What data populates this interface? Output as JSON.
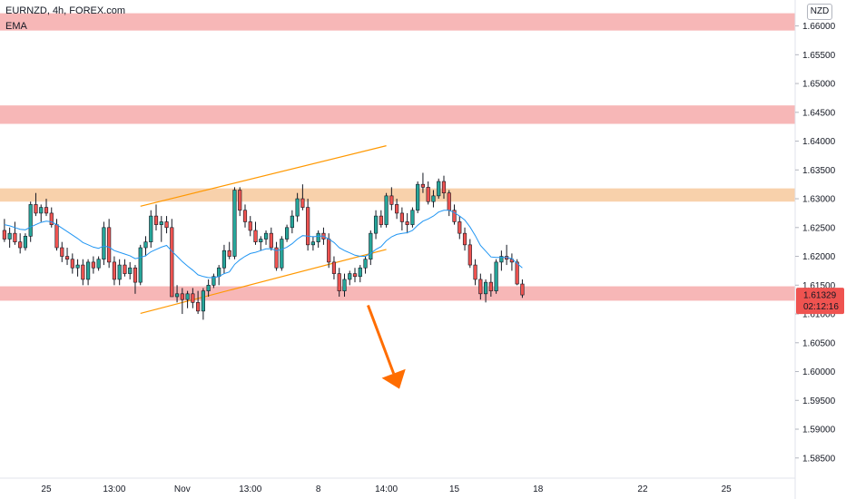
{
  "header": {
    "symbol_line": "EURNZD, 4h, FOREX.com",
    "indicator": "EMA",
    "currency": "NZD"
  },
  "price_label": {
    "price": "1.61329",
    "countdown": "02:12:16"
  },
  "colors": {
    "up": "#26a69a",
    "down": "#ef5350",
    "ema": "#2196f3",
    "channel": "#ff9800",
    "resistance_zone": "#f7b3b3",
    "orange_zone": "#f8cfa6",
    "arrow": "#ff6d00",
    "price_tag": "#ef5350"
  },
  "zones": [
    {
      "type": "red",
      "low": 1.6592,
      "high": 1.6622
    },
    {
      "type": "red",
      "low": 1.643,
      "high": 1.6462
    },
    {
      "type": "orange",
      "low": 1.6295,
      "high": 1.6318
    },
    {
      "type": "red",
      "low": 1.6123,
      "high": 1.6148
    }
  ],
  "chart_data": {
    "type": "candlestick",
    "ylim": [
      1.5815,
      1.6645
    ],
    "y_ticks": [
      "1.66000",
      "1.65500",
      "1.65000",
      "1.64500",
      "1.64000",
      "1.63500",
      "1.63000",
      "1.62500",
      "1.62000",
      "1.61500",
      "1.61000",
      "1.60500",
      "1.60000",
      "1.59500",
      "1.59000",
      "1.58500"
    ],
    "y_tick_values": [
      1.66,
      1.655,
      1.65,
      1.645,
      1.64,
      1.635,
      1.63,
      1.625,
      1.62,
      1.615,
      1.61,
      1.605,
      1.6,
      1.595,
      1.59,
      1.585
    ],
    "x_ticks": [
      {
        "label": "25",
        "bar": 8
      },
      {
        "label": "13:00",
        "bar": 21
      },
      {
        "label": "Nov",
        "bar": 34
      },
      {
        "label": "13:00",
        "bar": 47
      },
      {
        "label": "8",
        "bar": 60
      },
      {
        "label": "14:00",
        "bar": 73
      },
      {
        "label": "15",
        "bar": 86
      },
      {
        "label": "18",
        "bar": 102
      },
      {
        "label": "22",
        "bar": 122
      },
      {
        "label": "25",
        "bar": 138
      }
    ],
    "total_slots": 152,
    "candles": [
      [
        1.6245,
        1.6265,
        1.6225,
        1.623
      ],
      [
        1.623,
        1.625,
        1.6215,
        1.624
      ],
      [
        1.624,
        1.626,
        1.622,
        1.6225
      ],
      [
        1.6225,
        1.624,
        1.6205,
        1.6215
      ],
      [
        1.6215,
        1.624,
        1.621,
        1.6235
      ],
      [
        1.6235,
        1.6295,
        1.6225,
        1.629
      ],
      [
        1.629,
        1.631,
        1.627,
        1.6275
      ],
      [
        1.6275,
        1.629,
        1.626,
        1.6285
      ],
      [
        1.6285,
        1.63,
        1.627,
        1.6275
      ],
      [
        1.6275,
        1.6285,
        1.625,
        1.6255
      ],
      [
        1.6255,
        1.6265,
        1.621,
        1.6215
      ],
      [
        1.6215,
        1.6225,
        1.619,
        1.62
      ],
      [
        1.62,
        1.6215,
        1.6185,
        1.6195
      ],
      [
        1.6195,
        1.6205,
        1.617,
        1.618
      ],
      [
        1.618,
        1.6195,
        1.6165,
        1.6185
      ],
      [
        1.6185,
        1.6195,
        1.615,
        1.616
      ],
      [
        1.616,
        1.6195,
        1.615,
        1.619
      ],
      [
        1.619,
        1.62,
        1.617,
        1.618
      ],
      [
        1.618,
        1.62,
        1.6175,
        1.6195
      ],
      [
        1.6195,
        1.626,
        1.6185,
        1.625
      ],
      [
        1.625,
        1.6265,
        1.618,
        1.619
      ],
      [
        1.619,
        1.62,
        1.615,
        1.616
      ],
      [
        1.616,
        1.6195,
        1.615,
        1.6185
      ],
      [
        1.6185,
        1.6195,
        1.6165,
        1.617
      ],
      [
        1.617,
        1.619,
        1.616,
        1.618
      ],
      [
        1.618,
        1.6185,
        1.6135,
        1.6155
      ],
      [
        1.6155,
        1.622,
        1.615,
        1.6215
      ],
      [
        1.6215,
        1.6235,
        1.62,
        1.6225
      ],
      [
        1.6225,
        1.628,
        1.6215,
        1.627
      ],
      [
        1.627,
        1.629,
        1.6245,
        1.6255
      ],
      [
        1.6255,
        1.627,
        1.6225,
        1.626
      ],
      [
        1.626,
        1.627,
        1.624,
        1.625
      ],
      [
        1.625,
        1.6265,
        1.613,
        1.613
      ],
      [
        1.613,
        1.615,
        1.612,
        1.6135
      ],
      [
        1.6135,
        1.6145,
        1.61,
        1.6125
      ],
      [
        1.6125,
        1.614,
        1.611,
        1.6135
      ],
      [
        1.6135,
        1.6145,
        1.611,
        1.612
      ],
      [
        1.612,
        1.614,
        1.61,
        1.6105
      ],
      [
        1.6105,
        1.6145,
        1.609,
        1.614
      ],
      [
        1.614,
        1.616,
        1.613,
        1.615
      ],
      [
        1.615,
        1.617,
        1.6145,
        1.6165
      ],
      [
        1.6165,
        1.6185,
        1.615,
        1.618
      ],
      [
        1.618,
        1.622,
        1.617,
        1.621
      ],
      [
        1.621,
        1.6225,
        1.6195,
        1.62
      ],
      [
        1.62,
        1.632,
        1.6195,
        1.6315
      ],
      [
        1.6315,
        1.632,
        1.627,
        1.628
      ],
      [
        1.628,
        1.629,
        1.625,
        1.626
      ],
      [
        1.626,
        1.627,
        1.6235,
        1.6245
      ],
      [
        1.6245,
        1.626,
        1.622,
        1.6225
      ],
      [
        1.6225,
        1.6235,
        1.621,
        1.623
      ],
      [
        1.623,
        1.6245,
        1.622,
        1.624
      ],
      [
        1.624,
        1.625,
        1.621,
        1.6215
      ],
      [
        1.6215,
        1.6225,
        1.6175,
        1.618
      ],
      [
        1.618,
        1.6235,
        1.6175,
        1.623
      ],
      [
        1.623,
        1.6255,
        1.6225,
        1.625
      ],
      [
        1.625,
        1.628,
        1.624,
        1.627
      ],
      [
        1.627,
        1.631,
        1.626,
        1.63
      ],
      [
        1.63,
        1.6325,
        1.628,
        1.6285
      ],
      [
        1.6285,
        1.63,
        1.621,
        1.622
      ],
      [
        1.622,
        1.6235,
        1.621,
        1.6225
      ],
      [
        1.6225,
        1.6245,
        1.6215,
        1.624
      ],
      [
        1.624,
        1.625,
        1.622,
        1.623
      ],
      [
        1.623,
        1.624,
        1.618,
        1.619
      ],
      [
        1.619,
        1.62,
        1.616,
        1.617
      ],
      [
        1.617,
        1.618,
        1.613,
        1.614
      ],
      [
        1.614,
        1.617,
        1.613,
        1.616
      ],
      [
        1.616,
        1.6175,
        1.615,
        1.617
      ],
      [
        1.617,
        1.618,
        1.6155,
        1.6165
      ],
      [
        1.6165,
        1.6185,
        1.6155,
        1.618
      ],
      [
        1.618,
        1.62,
        1.617,
        1.6195
      ],
      [
        1.6195,
        1.6245,
        1.6185,
        1.624
      ],
      [
        1.624,
        1.628,
        1.623,
        1.627
      ],
      [
        1.627,
        1.628,
        1.625,
        1.6255
      ],
      [
        1.6255,
        1.631,
        1.625,
        1.6305
      ],
      [
        1.6305,
        1.632,
        1.628,
        1.629
      ],
      [
        1.629,
        1.63,
        1.6265,
        1.6275
      ],
      [
        1.6275,
        1.6285,
        1.6245,
        1.626
      ],
      [
        1.626,
        1.6275,
        1.624,
        1.6255
      ],
      [
        1.6255,
        1.6285,
        1.625,
        1.628
      ],
      [
        1.628,
        1.633,
        1.6275,
        1.6325
      ],
      [
        1.6325,
        1.6345,
        1.631,
        1.632
      ],
      [
        1.632,
        1.633,
        1.629,
        1.6295
      ],
      [
        1.6295,
        1.6315,
        1.6285,
        1.6305
      ],
      [
        1.6305,
        1.6335,
        1.63,
        1.633
      ],
      [
        1.633,
        1.634,
        1.63,
        1.631
      ],
      [
        1.631,
        1.6315,
        1.627,
        1.628
      ],
      [
        1.628,
        1.629,
        1.6255,
        1.626
      ],
      [
        1.626,
        1.627,
        1.623,
        1.624
      ],
      [
        1.624,
        1.625,
        1.621,
        1.622
      ],
      [
        1.622,
        1.623,
        1.618,
        1.6185
      ],
      [
        1.6185,
        1.6195,
        1.615,
        1.616
      ],
      [
        1.616,
        1.617,
        1.6125,
        1.6135
      ],
      [
        1.6135,
        1.616,
        1.612,
        1.6155
      ],
      [
        1.6155,
        1.617,
        1.613,
        1.614
      ],
      [
        1.614,
        1.6195,
        1.6135,
        1.619
      ],
      [
        1.619,
        1.621,
        1.6175,
        1.62
      ],
      [
        1.62,
        1.622,
        1.6185,
        1.6195
      ],
      [
        1.6195,
        1.6205,
        1.6175,
        1.619
      ],
      [
        1.619,
        1.6195,
        1.615,
        1.6152
      ],
      [
        1.6152,
        1.616,
        1.6128,
        1.6133
      ]
    ],
    "ema": [
      1.6255,
      1.6253,
      1.625,
      1.6247,
      1.6246,
      1.6251,
      1.6255,
      1.6259,
      1.6261,
      1.626,
      1.6255,
      1.6249,
      1.6243,
      1.6237,
      1.6231,
      1.6224,
      1.622,
      1.6216,
      1.6214,
      1.6218,
      1.6216,
      1.621,
      1.6207,
      1.6204,
      1.6201,
      1.6196,
      1.6198,
      1.6201,
      1.6208,
      1.6212,
      1.6216,
      1.6219,
      1.6209,
      1.62,
      1.6191,
      1.6183,
      1.6176,
      1.6168,
      1.6165,
      1.6163,
      1.6163,
      1.6165,
      1.617,
      1.6173,
      1.6186,
      1.6194,
      1.62,
      1.6205,
      1.6207,
      1.621,
      1.6213,
      1.6213,
      1.621,
      1.6212,
      1.6216,
      1.6222,
      1.623,
      1.6236,
      1.6235,
      1.6234,
      1.6235,
      1.6235,
      1.623,
      1.6224,
      1.6215,
      1.621,
      1.6206,
      1.6202,
      1.62,
      1.62,
      1.6205,
      1.6212,
      1.6217,
      1.6227,
      1.6234,
      1.6238,
      1.624,
      1.6241,
      1.6245,
      1.6254,
      1.6261,
      1.6265,
      1.627,
      1.6277,
      1.628,
      1.628,
      1.6276,
      1.627,
      1.6263,
      1.6251,
      1.6236,
      1.6219,
      1.6209,
      1.6199,
      1.6198,
      1.6198,
      1.6198,
      1.6196,
      1.6188,
      1.618
    ],
    "channel_lines": [
      {
        "from": [
          26,
          1.6287
        ],
        "to": [
          73,
          1.6392
        ]
      },
      {
        "from": [
          26,
          1.6101
        ],
        "to": [
          73,
          1.6212
        ]
      }
    ],
    "arrow": {
      "from": [
        69.5,
        1.6115
      ],
      "to": [
        75.5,
        1.597
      ]
    }
  }
}
